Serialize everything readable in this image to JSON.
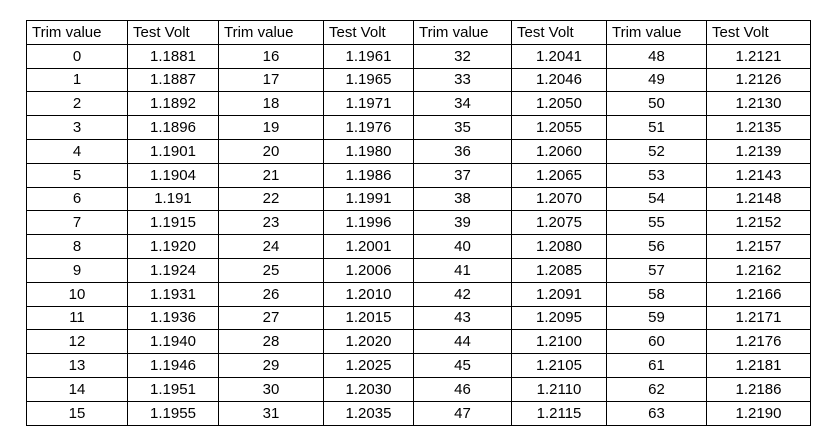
{
  "table": {
    "headers": [
      "Trim value",
      "Test Volt",
      "Trim value",
      "Test Volt",
      "Trim value",
      "Test Volt",
      "Trim value",
      "Test Volt"
    ],
    "rows": [
      [
        "0",
        "1.1881",
        "16",
        "1.1961",
        "32",
        "1.2041",
        "48",
        "1.2121"
      ],
      [
        "1",
        "1.1887",
        "17",
        "1.1965",
        "33",
        "1.2046",
        "49",
        "1.2126"
      ],
      [
        "2",
        "1.1892",
        "18",
        "1.1971",
        "34",
        "1.2050",
        "50",
        "1.2130"
      ],
      [
        "3",
        "1.1896",
        "19",
        "1.1976",
        "35",
        "1.2055",
        "51",
        "1.2135"
      ],
      [
        "4",
        "1.1901",
        "20",
        "1.1980",
        "36",
        "1.2060",
        "52",
        "1.2139"
      ],
      [
        "5",
        "1.1904",
        "21",
        "1.1986",
        "37",
        "1.2065",
        "53",
        "1.2143"
      ],
      [
        "6",
        "1.191",
        "22",
        "1.1991",
        "38",
        "1.2070",
        "54",
        "1.2148"
      ],
      [
        "7",
        "1.1915",
        "23",
        "1.1996",
        "39",
        "1.2075",
        "55",
        "1.2152"
      ],
      [
        "8",
        "1.1920",
        "24",
        "1.2001",
        "40",
        "1.2080",
        "56",
        "1.2157"
      ],
      [
        "9",
        "1.1924",
        "25",
        "1.2006",
        "41",
        "1.2085",
        "57",
        "1.2162"
      ],
      [
        "10",
        "1.1931",
        "26",
        "1.2010",
        "42",
        "1.2091",
        "58",
        "1.2166"
      ],
      [
        "11",
        "1.1936",
        "27",
        "1.2015",
        "43",
        "1.2095",
        "59",
        "1.2171"
      ],
      [
        "12",
        "1.1940",
        "28",
        "1.2020",
        "44",
        "1.2100",
        "60",
        "1.2176"
      ],
      [
        "13",
        "1.1946",
        "29",
        "1.2025",
        "45",
        "1.2105",
        "61",
        "1.2181"
      ],
      [
        "14",
        "1.1951",
        "30",
        "1.2030",
        "46",
        "1.2110",
        "62",
        "1.2186"
      ],
      [
        "15",
        "1.1955",
        "31",
        "1.2035",
        "47",
        "1.2115",
        "63",
        "1.2190"
      ]
    ]
  },
  "chart_data": {
    "type": "table",
    "title": "",
    "columns": [
      "Trim value",
      "Test Volt"
    ],
    "x": [
      0,
      1,
      2,
      3,
      4,
      5,
      6,
      7,
      8,
      9,
      10,
      11,
      12,
      13,
      14,
      15,
      16,
      17,
      18,
      19,
      20,
      21,
      22,
      23,
      24,
      25,
      26,
      27,
      28,
      29,
      30,
      31,
      32,
      33,
      34,
      35,
      36,
      37,
      38,
      39,
      40,
      41,
      42,
      43,
      44,
      45,
      46,
      47,
      48,
      49,
      50,
      51,
      52,
      53,
      54,
      55,
      56,
      57,
      58,
      59,
      60,
      61,
      62,
      63
    ],
    "series": [
      {
        "name": "Test Volt",
        "values": [
          1.1881,
          1.1887,
          1.1892,
          1.1896,
          1.1901,
          1.1904,
          1.191,
          1.1915,
          1.192,
          1.1924,
          1.1931,
          1.1936,
          1.194,
          1.1946,
          1.1951,
          1.1955,
          1.1961,
          1.1965,
          1.1971,
          1.1976,
          1.198,
          1.1986,
          1.1991,
          1.1996,
          1.2001,
          1.2006,
          1.201,
          1.2015,
          1.202,
          1.2025,
          1.203,
          1.2035,
          1.2041,
          1.2046,
          1.205,
          1.2055,
          1.206,
          1.2065,
          1.207,
          1.2075,
          1.208,
          1.2085,
          1.2091,
          1.2095,
          1.21,
          1.2105,
          1.211,
          1.2115,
          1.2121,
          1.2126,
          1.213,
          1.2135,
          1.2139,
          1.2143,
          1.2148,
          1.2152,
          1.2157,
          1.2162,
          1.2166,
          1.2171,
          1.2176,
          1.2181,
          1.2186,
          1.219
        ]
      }
    ],
    "colors": {
      "border": "#000000",
      "text": "#000000",
      "background": "#ffffff"
    }
  }
}
